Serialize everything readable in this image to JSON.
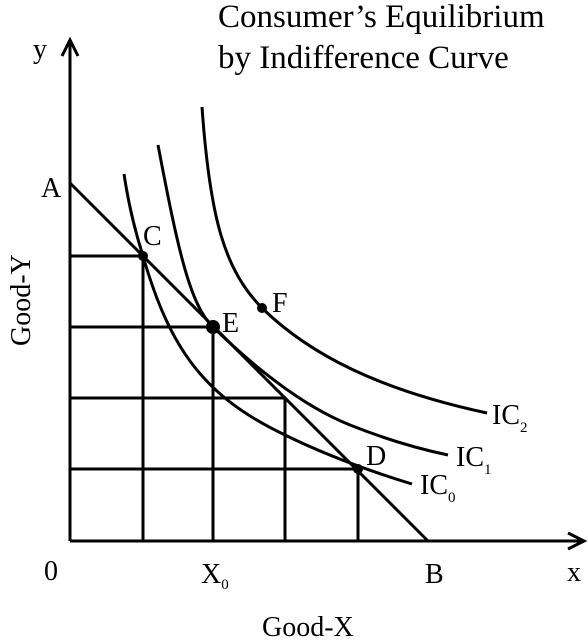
{
  "title": {
    "line1": "Consumer’s Equilibrium",
    "line2": "by Indifference Curve"
  },
  "axes": {
    "y_symbol": "y",
    "x_symbol": "x",
    "y_label": "Good-Y",
    "x_label": "Good-X",
    "origin": "0"
  },
  "budget_line": {
    "intercept_y": "A",
    "intercept_x": "B"
  },
  "curves": [
    {
      "name": "IC",
      "subscript": "0"
    },
    {
      "name": "IC",
      "subscript": "1"
    },
    {
      "name": "IC",
      "subscript": "2"
    }
  ],
  "points": {
    "c": "C",
    "e": "E",
    "f": "F",
    "d": "D"
  },
  "equilibrium_x": {
    "name": "X",
    "subscript": "0"
  },
  "colors": {
    "ink": "#000000",
    "background": "#ffffff"
  }
}
